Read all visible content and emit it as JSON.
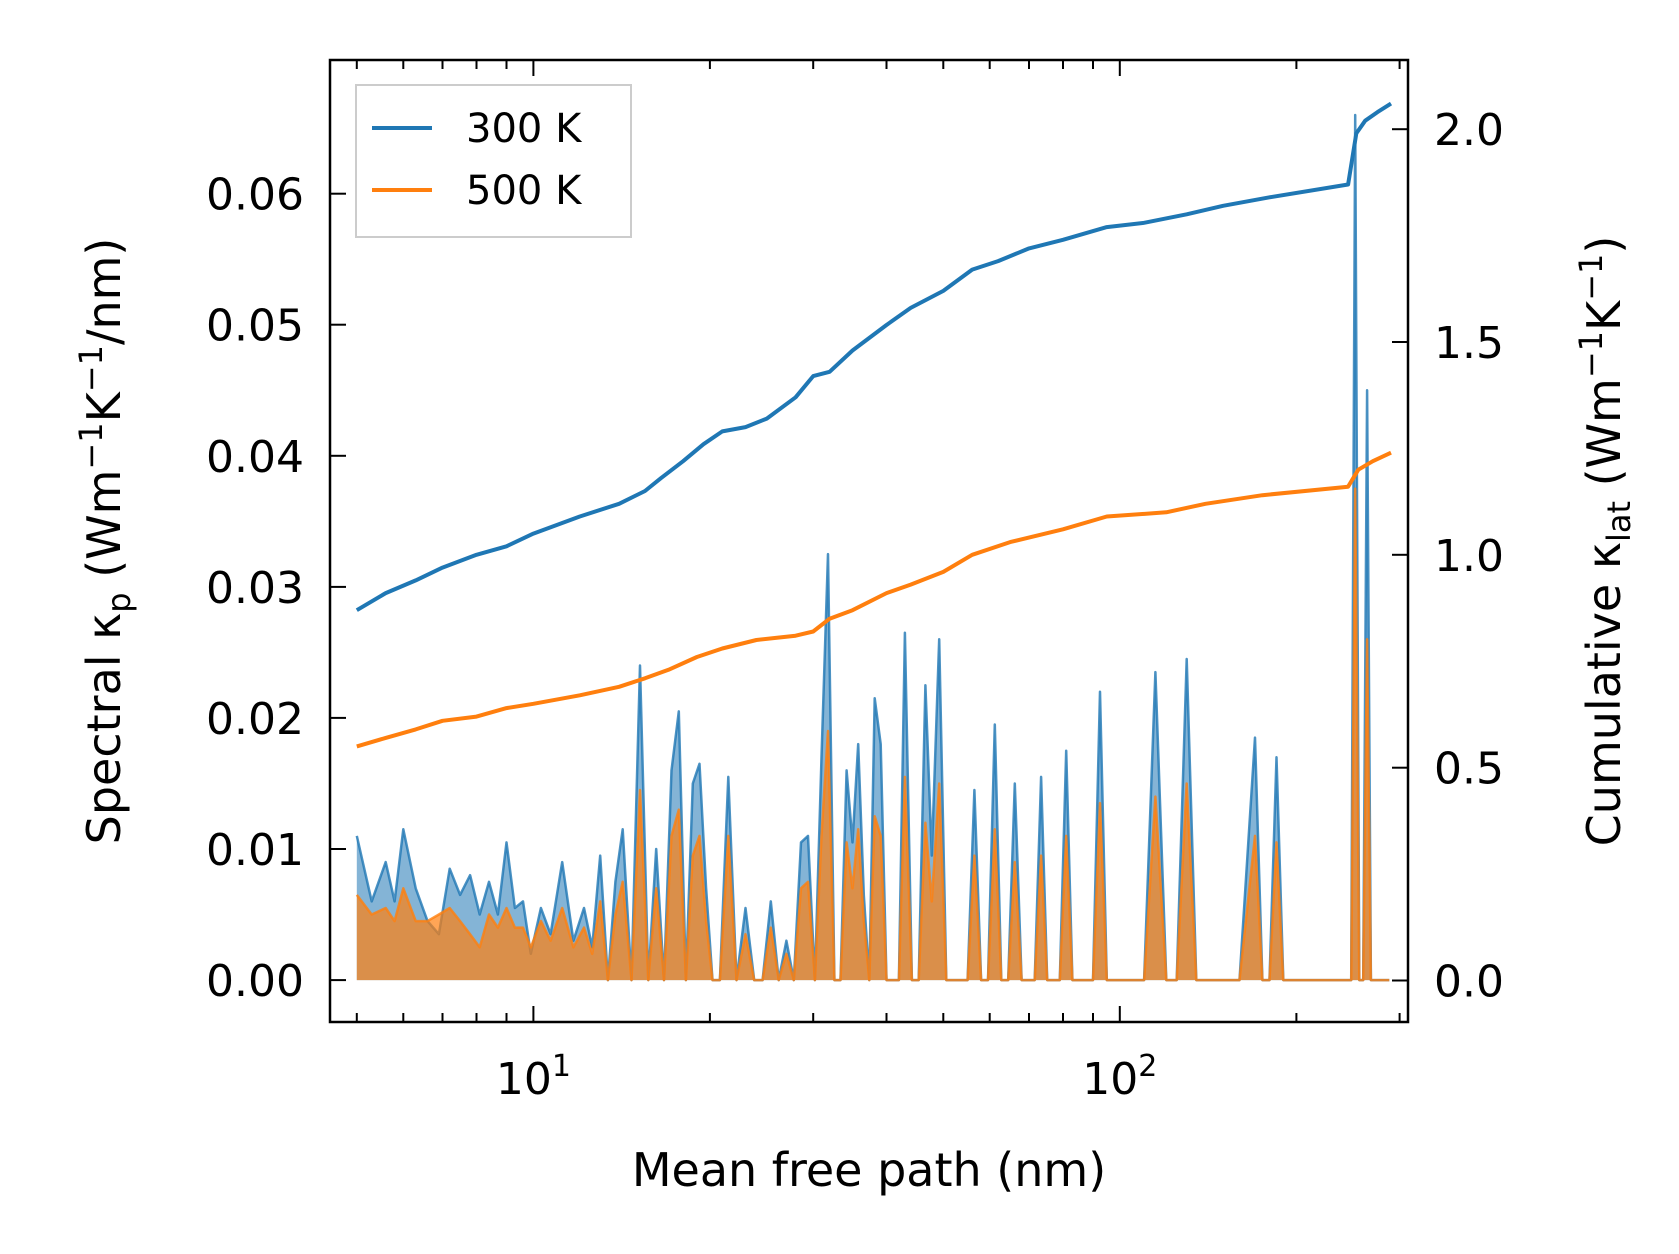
{
  "chart_data": {
    "type": "line",
    "title": "",
    "xlabel": "Mean free path (nm)",
    "ylabel_main": "Spectral κ",
    "ylabel_sub": "p",
    "ylabel_units_open": " (Wm",
    "ylabel_units_sup1": "−1",
    "ylabel_units_mid": "K",
    "ylabel_units_sup2": "−1",
    "ylabel_units_close": "/nm)",
    "y2label_main": "Cumulative κ",
    "y2label_sub": "lat",
    "y2label_units_open": " (Wm",
    "y2label_units_sup1": "−1",
    "y2label_units_mid": "K",
    "y2label_units_sup2": "−1",
    "y2label_units_close": ")",
    "xscale": "log",
    "xlim": [
      4.5,
      310
    ],
    "ylim": [
      -0.0032,
      0.0702
    ],
    "y2lim": [
      -0.0975,
      2.1625
    ],
    "x_tick_labels": [
      {
        "value": 10,
        "base": "10",
        "exp": "1"
      },
      {
        "value": 100,
        "base": "10",
        "exp": "2"
      }
    ],
    "y_ticks": [
      0.0,
      0.01,
      0.02,
      0.03,
      0.04,
      0.05,
      0.06
    ],
    "y_tick_labels": [
      "0.00",
      "0.01",
      "0.02",
      "0.03",
      "0.04",
      "0.05",
      "0.06"
    ],
    "y2_ticks": [
      0.0,
      0.5,
      1.0,
      1.5,
      2.0
    ],
    "y2_tick_labels": [
      "0.0",
      "0.5",
      "1.0",
      "1.5",
      "2.0"
    ],
    "legend_position": "top-left",
    "series": [
      {
        "name": "300 K",
        "color": "#1f77b4",
        "axis": "right",
        "kind": "cumulative",
        "x": [
          5.0,
          5.6,
          6.3,
          7.0,
          8.0,
          9.0,
          10.0,
          12.0,
          14.0,
          15.5,
          16.5,
          18.0,
          19.5,
          21.0,
          23.0,
          25.0,
          28.0,
          30.0,
          32.0,
          35.0,
          40.0,
          44.0,
          50.0,
          56.0,
          62.0,
          70.0,
          80.0,
          95.0,
          110.0,
          130.0,
          150.0,
          180.0,
          245.0,
          253.0,
          262.0,
          275.0,
          290.0
        ],
        "values": [
          0.87,
          0.91,
          0.94,
          0.97,
          1.0,
          1.02,
          1.05,
          1.09,
          1.12,
          1.15,
          1.18,
          1.22,
          1.26,
          1.29,
          1.3,
          1.32,
          1.37,
          1.42,
          1.43,
          1.48,
          1.54,
          1.58,
          1.62,
          1.67,
          1.69,
          1.72,
          1.74,
          1.77,
          1.78,
          1.8,
          1.82,
          1.84,
          1.87,
          1.99,
          2.02,
          2.04,
          2.06
        ]
      },
      {
        "name": "500 K",
        "color": "#ff7f0e",
        "axis": "right",
        "kind": "cumulative",
        "x": [
          5.0,
          5.6,
          6.3,
          7.0,
          8.0,
          9.0,
          10.0,
          12.0,
          14.0,
          15.5,
          17.0,
          19.0,
          21.0,
          24.0,
          28.0,
          30.0,
          32.0,
          35.0,
          40.0,
          44.0,
          50.0,
          56.0,
          65.0,
          80.0,
          95.0,
          120.0,
          140.0,
          175.0,
          245.0,
          255.0,
          270.0,
          290.0
        ],
        "values": [
          0.55,
          0.57,
          0.59,
          0.61,
          0.62,
          0.64,
          0.65,
          0.67,
          0.69,
          0.71,
          0.73,
          0.76,
          0.78,
          0.8,
          0.81,
          0.82,
          0.85,
          0.87,
          0.91,
          0.93,
          0.96,
          1.0,
          1.03,
          1.06,
          1.09,
          1.1,
          1.12,
          1.14,
          1.16,
          1.2,
          1.22,
          1.24
        ]
      },
      {
        "name": "300 K spectral",
        "color": "#1f77b4",
        "axis": "left",
        "kind": "spectral",
        "x": [
          5.0,
          5.3,
          5.6,
          5.8,
          6.0,
          6.3,
          6.6,
          6.9,
          7.2,
          7.5,
          7.8,
          8.1,
          8.4,
          8.7,
          9.0,
          9.3,
          9.6,
          9.9,
          10.3,
          10.7,
          11.2,
          11.7,
          12.2,
          12.6,
          13.0,
          13.4,
          13.8,
          14.2,
          14.7,
          15.2,
          15.7,
          16.2,
          16.7,
          17.2,
          17.7,
          18.2,
          18.7,
          19.2,
          19.7,
          20.2,
          20.8,
          21.5,
          22.2,
          23.0,
          23.8,
          24.6,
          25.4,
          26.2,
          27.0,
          27.8,
          28.6,
          29.4,
          30.2,
          31.0,
          31.8,
          32.6,
          33.4,
          34.2,
          35.0,
          35.8,
          36.6,
          37.4,
          38.2,
          39.1,
          40.0,
          41.0,
          42.0,
          43.0,
          44.2,
          45.4,
          46.6,
          47.8,
          49.2,
          50.6,
          52.0,
          53.5,
          55.0,
          56.5,
          58.0,
          59.6,
          61.2,
          62.8,
          64.5,
          66.2,
          68.0,
          69.8,
          71.6,
          73.4,
          75.2,
          77.0,
          79.0,
          81.0,
          83.0,
          85.0,
          87.5,
          90.0,
          92.5,
          95.0,
          97.5,
          100.0,
          110.0,
          115.0,
          120.0,
          125.0,
          130.0,
          135.0,
          140.0,
          145.0,
          150.0,
          160.0,
          170.0,
          175.0,
          180.0,
          185.0,
          190.0,
          200.0,
          220.0,
          238.0,
          244.0,
          248.0,
          252.0,
          256.0,
          260.0,
          264.0,
          268.0,
          272.0,
          276.0,
          280.0,
          284.0,
          288.0
        ],
        "values": [
          0.011,
          0.006,
          0.009,
          0.006,
          0.0115,
          0.007,
          0.0045,
          0.0035,
          0.0085,
          0.0065,
          0.008,
          0.005,
          0.0075,
          0.005,
          0.0105,
          0.0055,
          0.006,
          0.002,
          0.0055,
          0.0035,
          0.009,
          0.003,
          0.0055,
          0.0025,
          0.0095,
          0.0,
          0.0075,
          0.0115,
          0.0,
          0.024,
          0.0,
          0.01,
          0.0,
          0.016,
          0.0205,
          0.0,
          0.015,
          0.0165,
          0.007,
          0.0,
          0.0,
          0.0155,
          0.0,
          0.0055,
          0.0,
          0.0,
          0.006,
          0.0,
          0.003,
          0.0,
          0.0105,
          0.011,
          0.0,
          0.017,
          0.0325,
          0.0,
          0.0,
          0.016,
          0.0105,
          0.018,
          0.0065,
          0.0,
          0.0215,
          0.018,
          0.0,
          0.0,
          0.0,
          0.0265,
          0.0,
          0.0,
          0.0225,
          0.0095,
          0.026,
          0.0,
          0.0,
          0.0,
          0.0,
          0.0145,
          0.0,
          0.0,
          0.0195,
          0.0,
          0.0,
          0.015,
          0.0,
          0.0,
          0.0,
          0.0155,
          0.0,
          0.0,
          0.0,
          0.0175,
          0.0,
          0.0,
          0.0,
          0.0,
          0.022,
          0.0,
          0.0,
          0.0,
          0.0,
          0.0235,
          0.0,
          0.0,
          0.0245,
          0.0,
          0.0,
          0.0,
          0.0,
          0.0,
          0.0185,
          0.0,
          0.0,
          0.017,
          0.0,
          0.0,
          0.0,
          0.0,
          0.0,
          0.0,
          0.066,
          0.0,
          0.0,
          0.045,
          0.0,
          0.0,
          0.0,
          0.0,
          0.0,
          0.0
        ]
      },
      {
        "name": "500 K spectral",
        "color": "#ff7f0e",
        "axis": "left",
        "kind": "spectral",
        "x": [
          5.0,
          5.3,
          5.6,
          5.8,
          6.0,
          6.3,
          6.6,
          6.9,
          7.2,
          7.5,
          7.8,
          8.1,
          8.4,
          8.7,
          9.0,
          9.3,
          9.6,
          9.9,
          10.3,
          10.7,
          11.2,
          11.7,
          12.2,
          12.6,
          13.0,
          13.4,
          13.8,
          14.2,
          14.7,
          15.2,
          15.7,
          16.2,
          16.7,
          17.2,
          17.7,
          18.2,
          18.7,
          19.2,
          19.7,
          20.2,
          20.8,
          21.5,
          22.2,
          23.0,
          23.8,
          24.6,
          25.4,
          26.2,
          27.0,
          27.8,
          28.6,
          29.4,
          30.2,
          31.0,
          31.8,
          32.6,
          33.4,
          34.2,
          35.0,
          35.8,
          36.6,
          37.4,
          38.2,
          39.1,
          40.0,
          41.0,
          42.0,
          43.0,
          44.2,
          45.4,
          46.6,
          47.8,
          49.2,
          50.6,
          52.0,
          53.5,
          55.0,
          56.5,
          58.0,
          59.6,
          61.2,
          62.8,
          64.5,
          66.2,
          68.0,
          69.8,
          71.6,
          73.4,
          75.2,
          77.0,
          79.0,
          81.0,
          83.0,
          85.0,
          87.5,
          90.0,
          92.5,
          95.0,
          97.5,
          100.0,
          110.0,
          115.0,
          120.0,
          125.0,
          130.0,
          135.0,
          140.0,
          145.0,
          150.0,
          160.0,
          170.0,
          175.0,
          180.0,
          185.0,
          190.0,
          200.0,
          220.0,
          238.0,
          244.0,
          248.0,
          252.0,
          256.0,
          260.0,
          264.0,
          268.0,
          272.0,
          276.0,
          280.0,
          284.0,
          288.0
        ],
        "values": [
          0.0065,
          0.005,
          0.0055,
          0.0045,
          0.007,
          0.0045,
          0.0045,
          0.005,
          0.0055,
          0.0045,
          0.0035,
          0.0025,
          0.005,
          0.004,
          0.0055,
          0.004,
          0.004,
          0.0025,
          0.0045,
          0.003,
          0.0055,
          0.0025,
          0.004,
          0.002,
          0.006,
          0.0,
          0.005,
          0.0075,
          0.0,
          0.0145,
          0.0,
          0.007,
          0.0,
          0.011,
          0.013,
          0.0,
          0.0095,
          0.011,
          0.0045,
          0.0,
          0.0,
          0.011,
          0.0,
          0.0035,
          0.0,
          0.0,
          0.004,
          0.0,
          0.002,
          0.0,
          0.007,
          0.0075,
          0.0,
          0.011,
          0.019,
          0.0,
          0.0,
          0.0105,
          0.007,
          0.0115,
          0.0045,
          0.0,
          0.0125,
          0.011,
          0.0,
          0.0,
          0.0,
          0.0155,
          0.0,
          0.0,
          0.012,
          0.006,
          0.015,
          0.0,
          0.0,
          0.0,
          0.0,
          0.0095,
          0.0,
          0.0,
          0.0115,
          0.0,
          0.0,
          0.009,
          0.0,
          0.0,
          0.0,
          0.0095,
          0.0,
          0.0,
          0.0,
          0.011,
          0.0,
          0.0,
          0.0,
          0.0,
          0.0135,
          0.0,
          0.0,
          0.0,
          0.0,
          0.014,
          0.0,
          0.0,
          0.015,
          0.0,
          0.0,
          0.0,
          0.0,
          0.0,
          0.011,
          0.0,
          0.0,
          0.0105,
          0.0,
          0.0,
          0.0,
          0.0,
          0.0,
          0.0,
          0.0375,
          0.0,
          0.0,
          0.026,
          0.0,
          0.0,
          0.0,
          0.0,
          0.0,
          0.0
        ]
      }
    ],
    "legend": [
      {
        "label": "300 K",
        "color": "#1f77b4"
      },
      {
        "label": "500 K",
        "color": "#ff7f0e"
      }
    ]
  }
}
